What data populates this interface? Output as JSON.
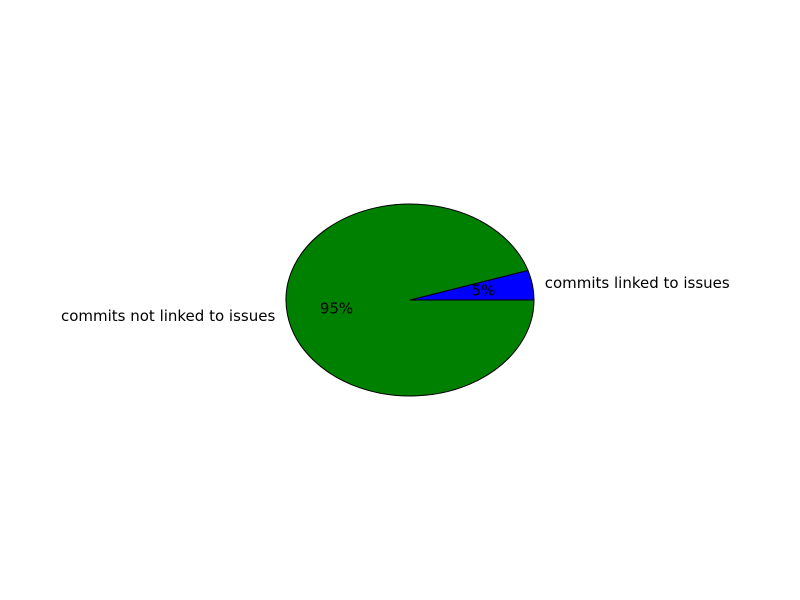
{
  "chart_data": {
    "type": "pie",
    "slices": [
      {
        "label": "commits linked to issues",
        "value": 5,
        "pct_label": "5%",
        "color": "#0000ff"
      },
      {
        "label": "commits not linked to issues",
        "value": 95,
        "pct_label": "95%",
        "color": "#008000"
      }
    ],
    "start_angle_deg": 0,
    "direction": "counterclockwise",
    "edge_color": "#000000"
  }
}
